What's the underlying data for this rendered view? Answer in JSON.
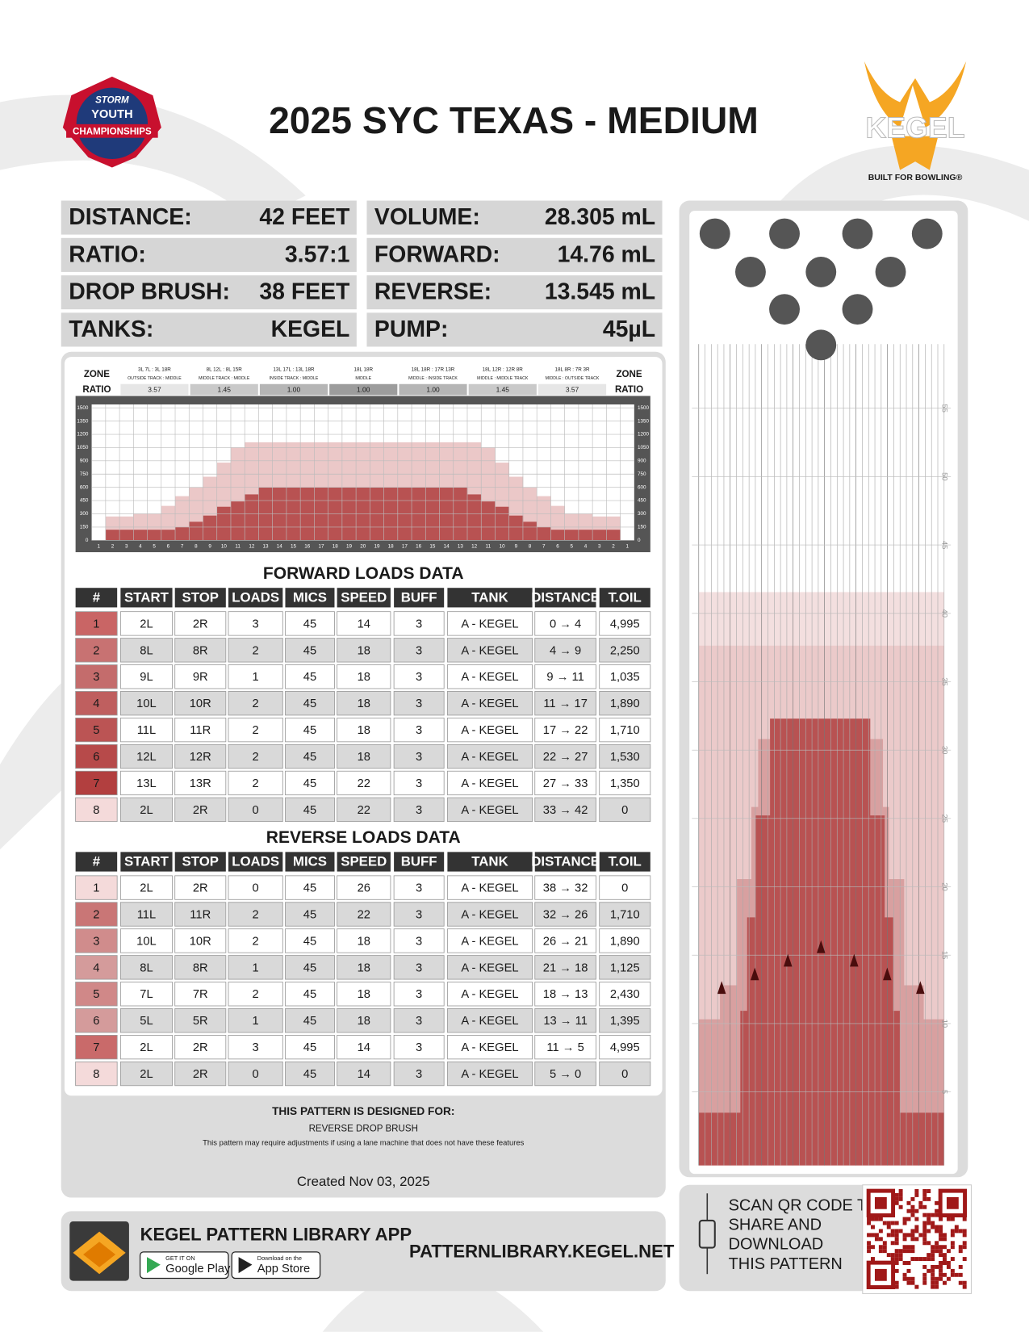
{
  "header": {
    "title": "2025 SYC TEXAS - MEDIUM",
    "left_logo": [
      "STORM",
      "YOUTH",
      "CHAMPIONSHIPS"
    ],
    "right_logo": {
      "name": "KEGEL",
      "tagline": "BUILT FOR BOWLING®"
    }
  },
  "stats": {
    "left": [
      [
        "DISTANCE:",
        "42 FEET"
      ],
      [
        "RATIO:",
        "3.57:1"
      ],
      [
        "DROP BRUSH:",
        "38 FEET"
      ],
      [
        "TANKS:",
        "KEGEL"
      ]
    ],
    "right": [
      [
        "VOLUME:",
        "28.305 mL"
      ],
      [
        "FORWARD:",
        "14.76 mL"
      ],
      [
        "REVERSE:",
        "13.545 mL"
      ],
      [
        "PUMP:",
        "45µL"
      ]
    ]
  },
  "zone_chart": {
    "zone_label": "ZONE",
    "ratio_label": "RATIO",
    "zones": [
      {
        "range": "3L 7L : 3L 18R",
        "desc": "OUTSIDE TRACK : MIDDLE",
        "ratio": "3.57",
        "color": "#e6e6e6"
      },
      {
        "range": "8L 12L : 8L 15R",
        "desc": "MIDDLE TRACK : MIDDLE",
        "ratio": "1.45",
        "color": "#c9c9c9"
      },
      {
        "range": "13L 17L : 13L 18R",
        "desc": "INSIDE TRACK : MIDDLE",
        "ratio": "1.00",
        "color": "#b5b5b5"
      },
      {
        "range": "18L 18R",
        "desc": "MIDDLE",
        "ratio": "1.00",
        "color": "#9c9c9c"
      },
      {
        "range": "18L 18R : 17R 13R",
        "desc": "MIDDLE : INSIDE TRACK",
        "ratio": "1.00",
        "color": "#b5b5b5"
      },
      {
        "range": "18L 12R : 12R 8R",
        "desc": "MIDDLE : MIDDLE TRACK",
        "ratio": "1.45",
        "color": "#c9c9c9"
      },
      {
        "range": "18L 8R : 7R 3R",
        "desc": "MIDDLE : OUTSIDE TRACK",
        "ratio": "3.57",
        "color": "#e6e6e6"
      }
    ],
    "ylim": [
      0,
      1500
    ],
    "yticks": [
      0,
      150,
      300,
      450,
      600,
      750,
      900,
      1050,
      1200,
      1350,
      1500
    ],
    "x_labels": [
      1,
      2,
      3,
      4,
      5,
      6,
      7,
      8,
      9,
      10,
      11,
      12,
      13,
      14,
      15,
      16,
      17,
      18,
      19,
      20,
      19,
      18,
      17,
      16,
      15,
      14,
      13,
      12,
      11,
      10,
      9,
      8,
      7,
      6,
      5,
      4,
      3,
      2,
      1
    ],
    "layers": [
      {
        "color": "#ebc8c8",
        "values": [
          0,
          270,
          270,
          300,
          300,
          390,
          500,
          600,
          720,
          880,
          1050,
          1110,
          1110,
          1110,
          1110,
          1110,
          1110,
          1110,
          1110,
          1110,
          1110,
          1110,
          1110,
          1110,
          1110,
          1110,
          1110,
          1110,
          1050,
          880,
          720,
          600,
          500,
          390,
          300,
          300,
          270,
          270,
          0
        ]
      },
      {
        "color": "#b85252",
        "values": [
          0,
          120,
          120,
          120,
          120,
          120,
          150,
          210,
          280,
          380,
          440,
          520,
          600,
          600,
          600,
          600,
          600,
          600,
          600,
          600,
          600,
          600,
          600,
          600,
          600,
          600,
          600,
          520,
          440,
          380,
          280,
          210,
          150,
          120,
          120,
          120,
          120,
          120,
          0
        ]
      }
    ]
  },
  "forward": {
    "title": "FORWARD LOADS DATA",
    "columns": [
      "#",
      "START",
      "STOP",
      "LOADS",
      "MICS",
      "SPEED",
      "BUFF",
      "TANK",
      "DISTANCE",
      "T.OIL"
    ],
    "rows": [
      [
        1,
        "2L",
        "2R",
        3,
        45,
        14,
        3,
        "A - KEGEL",
        "0 → 4",
        "4,995"
      ],
      [
        2,
        "8L",
        "8R",
        2,
        45,
        18,
        3,
        "A - KEGEL",
        "4 → 9",
        "2,250"
      ],
      [
        3,
        "9L",
        "9R",
        1,
        45,
        18,
        3,
        "A - KEGEL",
        "9 → 11",
        "1,035"
      ],
      [
        4,
        "10L",
        "10R",
        2,
        45,
        18,
        3,
        "A - KEGEL",
        "11 → 17",
        "1,890"
      ],
      [
        5,
        "11L",
        "11R",
        2,
        45,
        18,
        3,
        "A - KEGEL",
        "17 → 22",
        "1,710"
      ],
      [
        6,
        "12L",
        "12R",
        2,
        45,
        18,
        3,
        "A - KEGEL",
        "22 → 27",
        "1,530"
      ],
      [
        7,
        "13L",
        "13R",
        2,
        45,
        22,
        3,
        "A - KEGEL",
        "27 → 33",
        "1,350"
      ],
      [
        8,
        "2L",
        "2R",
        0,
        45,
        22,
        3,
        "A - KEGEL",
        "33 → 42",
        0
      ]
    ],
    "row_colors": [
      "#c96565",
      "#c87272",
      "#c46c6c",
      "#bf5f5f",
      "#bb5454",
      "#b74a4a",
      "#b23f3f",
      "#f4dada"
    ]
  },
  "reverse": {
    "title": "REVERSE LOADS DATA",
    "columns": [
      "#",
      "START",
      "STOP",
      "LOADS",
      "MICS",
      "SPEED",
      "BUFF",
      "TANK",
      "DISTANCE",
      "T.OIL"
    ],
    "rows": [
      [
        1,
        "2L",
        "2R",
        0,
        45,
        26,
        3,
        "A - KEGEL",
        "38 → 32",
        0
      ],
      [
        2,
        "11L",
        "11R",
        2,
        45,
        22,
        3,
        "A - KEGEL",
        "32 → 26",
        "1,710"
      ],
      [
        3,
        "10L",
        "10R",
        2,
        45,
        18,
        3,
        "A - KEGEL",
        "26 → 21",
        "1,890"
      ],
      [
        4,
        "8L",
        "8R",
        1,
        45,
        18,
        3,
        "A - KEGEL",
        "21 → 18",
        "1,125"
      ],
      [
        5,
        "7L",
        "7R",
        2,
        45,
        18,
        3,
        "A - KEGEL",
        "18 → 13",
        "2,430"
      ],
      [
        6,
        "5L",
        "5R",
        1,
        45,
        18,
        3,
        "A - KEGEL",
        "13 → 11",
        "1,395"
      ],
      [
        7,
        "2L",
        "2R",
        3,
        45,
        14,
        3,
        "A - KEGEL",
        "11 → 5",
        "4,995"
      ],
      [
        8,
        "2L",
        "2R",
        0,
        45,
        14,
        3,
        "A - KEGEL",
        "5 → 0",
        0
      ]
    ],
    "row_colors": [
      "#f4dada",
      "#c97676",
      "#d08c8c",
      "#d49b9b",
      "#d08888",
      "#d49b9b",
      "#c96a6a",
      "#f4dada"
    ]
  },
  "notes": {
    "heading": "THIS PATTERN IS DESIGNED FOR:",
    "feature": "REVERSE DROP BRUSH",
    "disclaimer": "This pattern may require adjustments if using a lane machine that does not have these features",
    "created": "Created Nov 03, 2025"
  },
  "app": {
    "title": "KEGEL PATTERN LIBRARY APP",
    "google": [
      "GET IT ON",
      "Google Play"
    ],
    "apple": [
      "Download on the",
      "App Store"
    ],
    "url": "PATTERNLIBRARY.KEGEL.NET"
  },
  "qr": {
    "lines": [
      "SCAN QR CODE TO",
      "SHARE AND",
      "DOWNLOAD",
      "THIS PATTERN"
    ]
  },
  "lane": {
    "distance_ticks": [
      5,
      10,
      15,
      20,
      25,
      30,
      35,
      40,
      45,
      50,
      55
    ]
  }
}
